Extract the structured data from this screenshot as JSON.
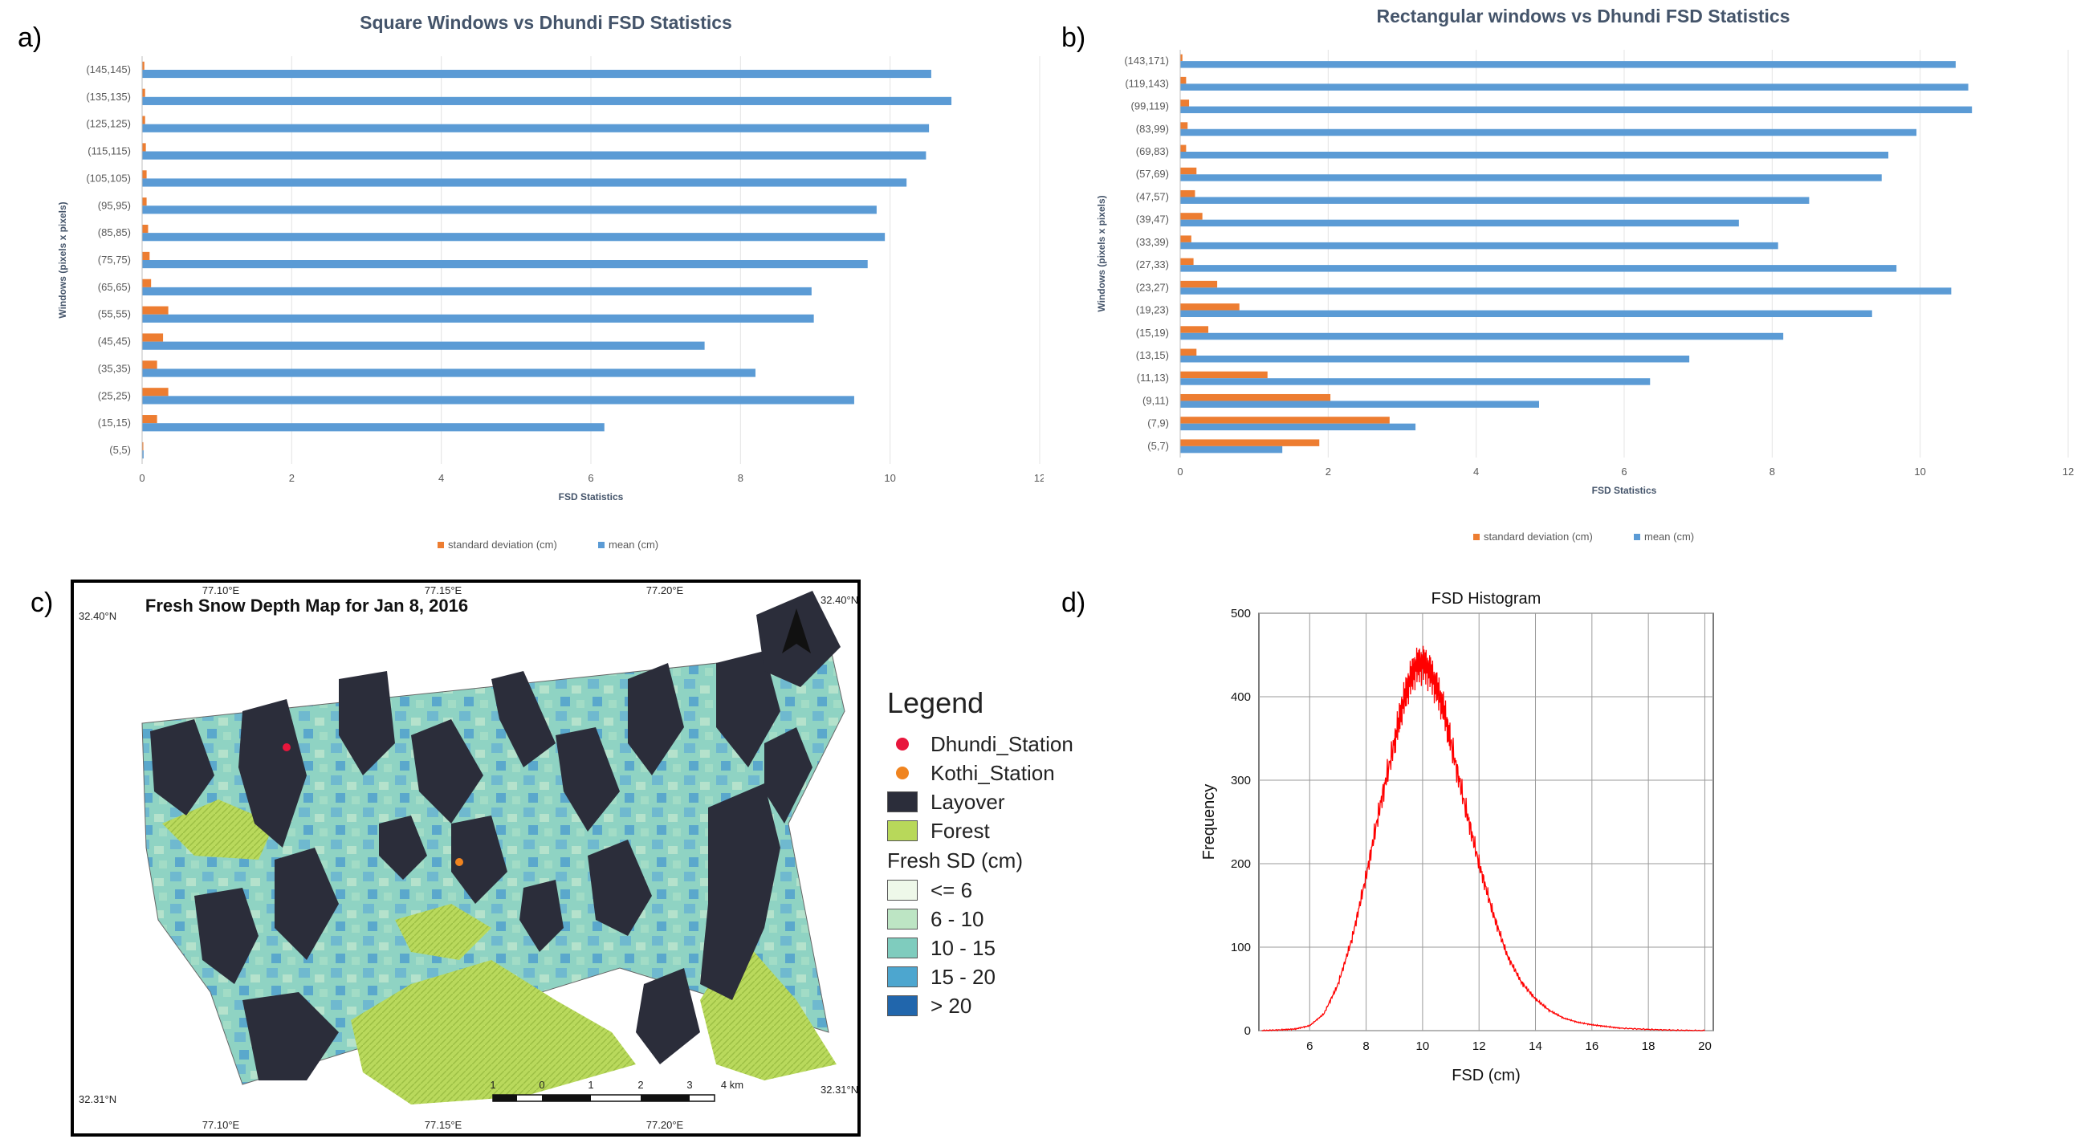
{
  "panels": {
    "a": "a)",
    "b": "b)",
    "c": "c)",
    "d": "d)"
  },
  "chart_data": [
    {
      "type": "bar",
      "orientation": "horizontal",
      "title": "Square Windows vs Dhundi FSD Statistics",
      "xlabel": "FSD Statistics",
      "ylabel": "Windows (pixels x pixels)",
      "xlim": [
        0,
        12
      ],
      "xticks": [
        "0",
        "2",
        "4",
        "6",
        "8",
        "10",
        "12"
      ],
      "legend_position": "bottom",
      "categories": [
        "(145,145)",
        "(135,135)",
        "(125,125)",
        "(115,115)",
        "(105,105)",
        "(95,95)",
        "(85,85)",
        "(75,75)",
        "(65,65)",
        "(55,55)",
        "(45,45)",
        "(35,35)",
        "(25,25)",
        "(15,15)",
        "(5,5)"
      ],
      "series": [
        {
          "name": "standard deviation (cm)",
          "color": "#ed7d31",
          "values": [
            0.03,
            0.04,
            0.04,
            0.05,
            0.06,
            0.06,
            0.08,
            0.1,
            0.12,
            0.35,
            0.28,
            0.2,
            0.35,
            0.2,
            0.01
          ]
        },
        {
          "name": "mean (cm)",
          "color": "#5b9bd5",
          "values": [
            10.55,
            10.82,
            10.52,
            10.48,
            10.22,
            9.82,
            9.93,
            9.7,
            8.95,
            8.98,
            7.52,
            8.2,
            9.52,
            6.18,
            0.02
          ]
        }
      ]
    },
    {
      "type": "bar",
      "orientation": "horizontal",
      "title": "Rectangular windows vs Dhundi FSD Statistics",
      "xlabel": "FSD Statistics",
      "ylabel": "Windows (pixels x pixels)",
      "xlim": [
        0,
        12
      ],
      "xticks": [
        "0",
        "2",
        "4",
        "6",
        "8",
        "10",
        "12"
      ],
      "legend_position": "bottom",
      "categories": [
        "(143,171)",
        "(119,143)",
        "(99,119)",
        "(83,99)",
        "(69,83)",
        "(57,69)",
        "(47,57)",
        "(39,47)",
        "(33,39)",
        "(27,33)",
        "(23,27)",
        "(19,23)",
        "(15,19)",
        "(13,15)",
        "(11,13)",
        "(9,11)",
        "(7,9)",
        "(5,7)"
      ],
      "series": [
        {
          "name": "standard deviation (cm)",
          "color": "#ed7d31",
          "values": [
            0.03,
            0.08,
            0.12,
            0.1,
            0.08,
            0.22,
            0.2,
            0.3,
            0.15,
            0.18,
            0.5,
            0.8,
            0.38,
            0.22,
            1.18,
            2.03,
            2.83,
            1.88
          ]
        },
        {
          "name": "mean (cm)",
          "color": "#5b9bd5",
          "values": [
            10.48,
            10.65,
            10.7,
            9.95,
            9.57,
            9.48,
            8.5,
            7.55,
            8.08,
            9.68,
            10.42,
            9.35,
            8.15,
            6.88,
            6.35,
            4.85,
            3.18,
            1.38
          ]
        }
      ]
    },
    {
      "type": "line",
      "title": "FSD Histogram",
      "xlabel": "FSD (cm)",
      "ylabel": "Frequency",
      "xlim": [
        4.2,
        20.3
      ],
      "ylim": [
        0,
        500
      ],
      "xticks": [
        "6",
        "8",
        "10",
        "12",
        "14",
        "16",
        "18",
        "20"
      ],
      "yticks": [
        "0",
        "100",
        "200",
        "300",
        "400",
        "500"
      ],
      "grid": true,
      "color": "#ff0000",
      "x": [
        4.3,
        5,
        5.5,
        6,
        6.5,
        7,
        7.5,
        8,
        8.5,
        9,
        9.25,
        9.5,
        9.75,
        10,
        10.25,
        10.5,
        10.75,
        11,
        11.5,
        12,
        12.5,
        13,
        13.5,
        14,
        14.5,
        15,
        15.5,
        16,
        16.5,
        17,
        18,
        19,
        20
      ],
      "y": [
        0,
        1,
        2,
        6,
        20,
        55,
        110,
        185,
        270,
        345,
        385,
        415,
        435,
        440,
        430,
        410,
        385,
        345,
        270,
        200,
        140,
        90,
        58,
        38,
        24,
        15,
        10,
        7,
        5,
        3,
        1.5,
        0.5,
        0
      ]
    }
  ],
  "map": {
    "title": "Fresh Snow Depth Map for Jan 8, 2016",
    "top_lon_labels": [
      "77.10°E",
      "77.15°E",
      "77.20°E"
    ],
    "bottom_lon_labels": [
      "77.10°E",
      "77.15°E",
      "77.20°E"
    ],
    "lat_labels": {
      "top_left": "32.40°N",
      "top_right": "32.40°N",
      "bottom_left": "32.31°N",
      "bottom_right": "32.31°N"
    },
    "scale_labels": [
      "1",
      "0",
      "1",
      "2",
      "3",
      "4 km"
    ],
    "north_arrow": "north-arrow-icon",
    "legend": {
      "title": "Legend",
      "stations": [
        {
          "label": "Dhundi_Station",
          "color": "#e8163c"
        },
        {
          "label": "Kothi_Station",
          "color": "#f0841f"
        }
      ],
      "masks": [
        {
          "label": "Layover",
          "color": "#2b2d3a"
        },
        {
          "label": "Forest",
          "color": "#b8d85a"
        }
      ],
      "classes_title": "Fresh SD (cm)",
      "classes": [
        {
          "label": "<= 6",
          "color": "#eef8e9"
        },
        {
          "label": "6 - 10",
          "color": "#bde5c4"
        },
        {
          "label": "10 - 15",
          "color": "#7fccbe"
        },
        {
          "label": "15 - 20",
          "color": "#4da6cf"
        },
        {
          "label": "> 20",
          "color": "#2166ac"
        }
      ]
    }
  }
}
